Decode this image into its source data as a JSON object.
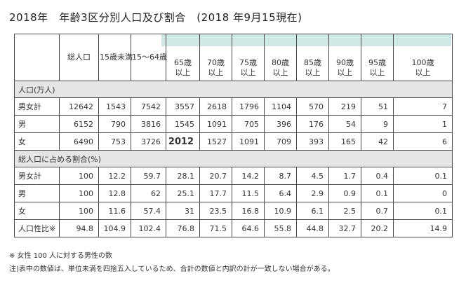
{
  "title": "2018年　年齢3区分別人口及び割合　(2018 年9月15現在)",
  "headers": [
    "",
    "総人口",
    "15歳未満",
    "15～64歳",
    "65歳\n以上",
    "70歳\n以上",
    "75歳\n以上",
    "80歳\n以上",
    "85歳\n以上",
    "90歳\n以上",
    "95歳\n以上",
    "100歳\n以上"
  ],
  "section1": "人口(万人)",
  "rows1": [
    {
      "label": "男女計",
      "values": [
        "12642",
        "1543",
        "7542",
        "3557",
        "2618",
        "1796",
        "1104",
        "570",
        "219",
        "51",
        "7"
      ]
    },
    {
      "label": "男",
      "values": [
        "6152",
        "790",
        "3816",
        "1545",
        "1091",
        "705",
        "396",
        "176",
        "54",
        "9",
        "1"
      ]
    },
    {
      "label": "女",
      "values": [
        "6490",
        "753",
        "3726",
        "2012",
        "1527",
        "1091",
        "709",
        "393",
        "165",
        "42",
        "6"
      ]
    }
  ],
  "section2": "総人口に占める割合(%)",
  "rows2": [
    {
      "label": "男女計",
      "values": [
        "100",
        "12.2",
        "59.7",
        "28.1",
        "20.7",
        "14.2",
        "8.7",
        "4.5",
        "1.7",
        "0.4",
        "0.1"
      ]
    },
    {
      "label": "男",
      "values": [
        "100",
        "12.8",
        "62",
        "25.1",
        "17.7",
        "11.5",
        "6.4",
        "2.9",
        "0.9",
        "0.1",
        "0"
      ]
    },
    {
      "label": "女",
      "values": [
        "100",
        "11.6",
        "57.4",
        "31",
        "23.5",
        "16.8",
        "10.9",
        "6.1",
        "2.5",
        "0.7",
        "0.1"
      ]
    },
    {
      "label": "人口性比※",
      "values": [
        "94.8",
        "104.9",
        "102.4",
        "76.8",
        "71.5",
        "64.6",
        "55.8",
        "44.8",
        "32.7",
        "20.2",
        "14.9"
      ]
    }
  ],
  "note1": "※ 女性 100 人に対する男性の数",
  "note2": "注)表中の数値は、単位未満を四捨五入しているため、合計の数値と内訳の計が一致しない場合がある。",
  "highlight_color": "#3cb8a8",
  "band_color": "#cfe8e5"
}
